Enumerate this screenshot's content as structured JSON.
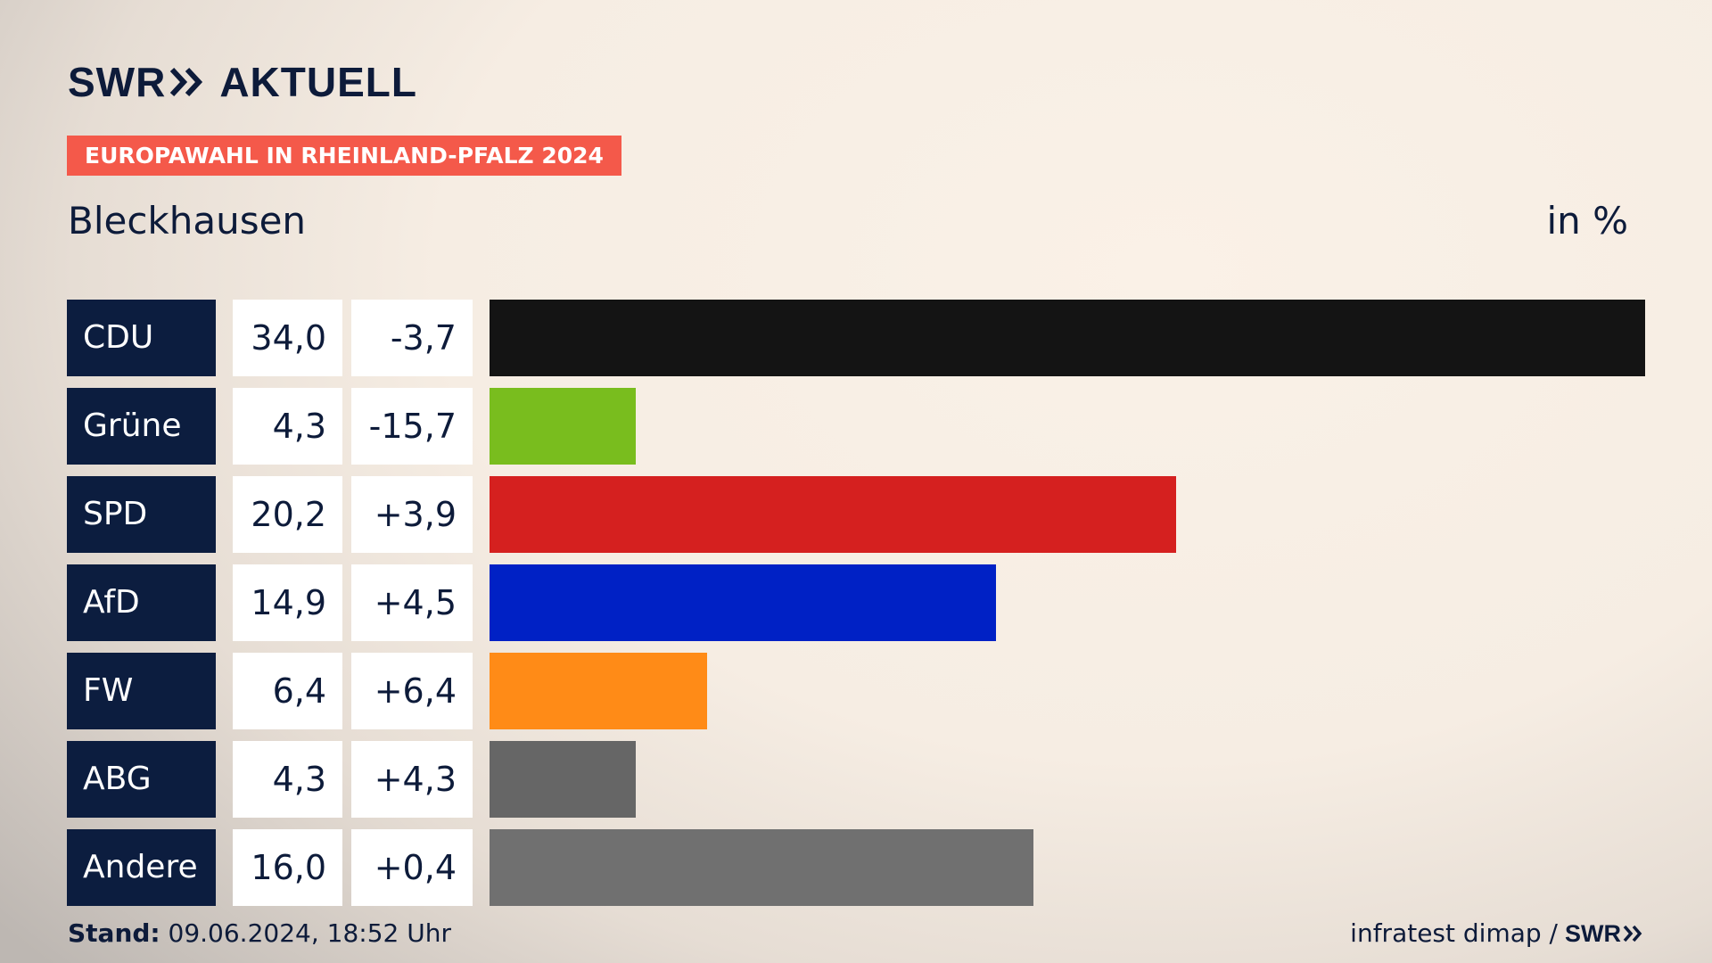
{
  "brand": {
    "logo_swr": "SWR",
    "logo_aktuell": "AKTUELL"
  },
  "badge": "EUROPAWAHL IN RHEINLAND-PFALZ 2024",
  "location": "Bleckhausen",
  "unit_label": "in %",
  "chart_data": {
    "type": "bar",
    "title": "Europawahl in Rheinland-Pfalz 2024 – Bleckhausen",
    "unit": "in %",
    "categories": [
      "CDU",
      "Grüne",
      "SPD",
      "AfD",
      "FW",
      "ABG",
      "Andere"
    ],
    "values": [
      34.0,
      4.3,
      20.2,
      14.9,
      6.4,
      4.3,
      16.0
    ],
    "value_labels": [
      "34,0",
      "4,3",
      "20,2",
      "14,9",
      "6,4",
      "4,3",
      "16,0"
    ],
    "diffs": [
      -3.7,
      -15.7,
      3.9,
      4.5,
      6.4,
      4.3,
      0.4
    ],
    "diff_labels": [
      "-3,7",
      "-15,7",
      "+3,9",
      "+4,5",
      "+6,4",
      "+4,3",
      "+0,4"
    ],
    "colors": [
      "#141414",
      "#79bd1e",
      "#d5201f",
      "#0021c5",
      "#ff8b17",
      "#666666",
      "#707070"
    ],
    "xlim": [
      0,
      34.0
    ]
  },
  "footer": {
    "stand_label": "Stand:",
    "stand_value": " 09.06.2024, 18:52 Uhr",
    "source": "infratest dimap /",
    "source_logo": "SWR"
  }
}
